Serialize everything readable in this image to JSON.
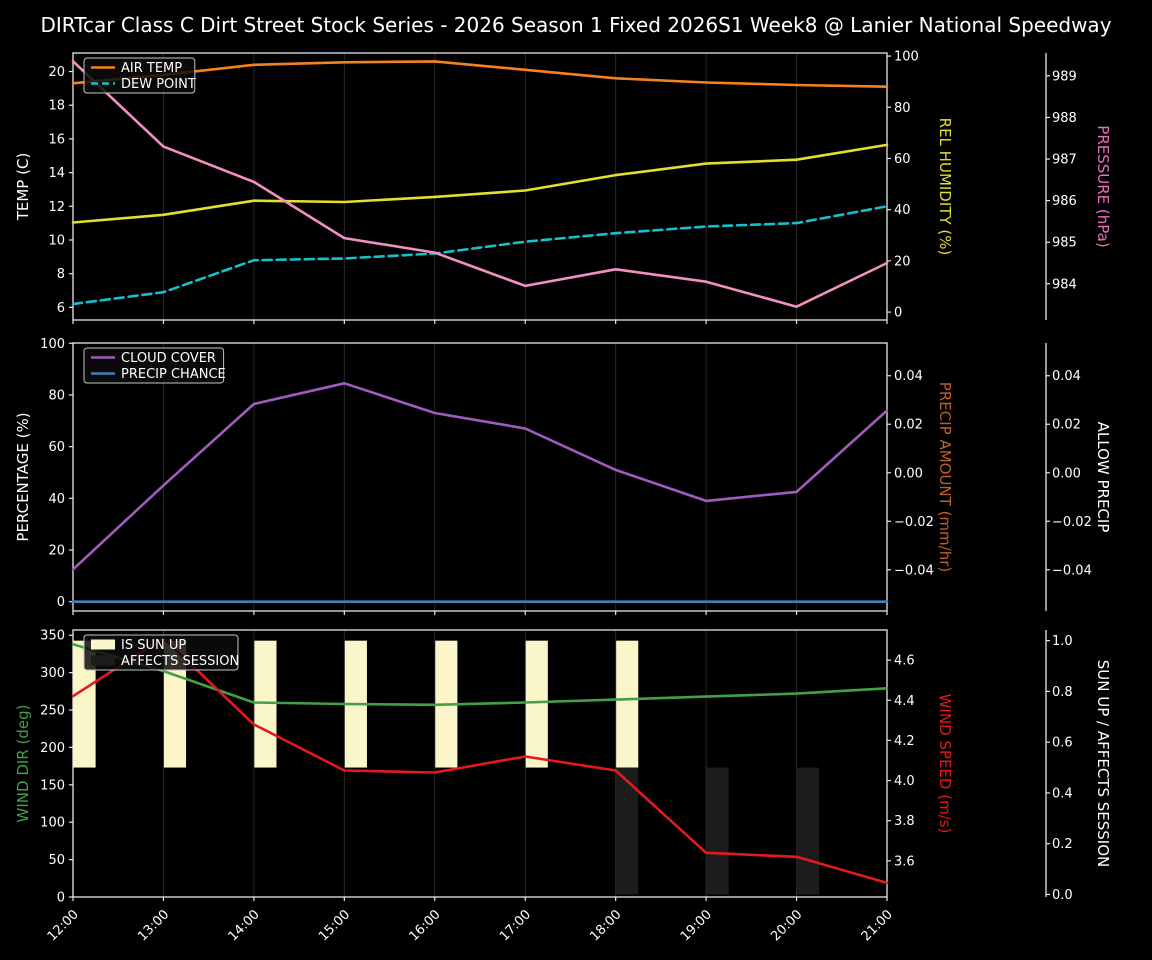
{
  "title": "DIRTcar Class C Dirt Street Stock Series - 2026 Season 1 Fixed 2026S1 Week8 @ Lanier National Speedway",
  "colors": {
    "background": "#000000",
    "spine": "#e8e8e8",
    "grid": "#282828",
    "text": "#ffffff",
    "legend_border": "#c4c4c4",
    "legend_bg": "rgba(12,12,12,0.85)"
  },
  "x_labels": [
    "12:00",
    "13:00",
    "14:00",
    "15:00",
    "16:00",
    "17:00",
    "18:00",
    "19:00",
    "20:00",
    "21:00"
  ],
  "chart_data": [
    {
      "id": "temperature",
      "type": "line",
      "axes": {
        "left": {
          "label": "TEMP (C)",
          "color": "#ffffff",
          "range": [
            5.25,
            21.1
          ],
          "ticks": [
            6,
            8,
            10,
            12,
            14,
            16,
            18,
            20
          ],
          "tick_labels": [
            "6",
            "8",
            "10",
            "12",
            "14",
            "16",
            "18",
            "20"
          ]
        },
        "right1": {
          "label": "REL HUMIDITY (%)",
          "color": "#e3de2f",
          "range": [
            -3.1,
            101.2
          ],
          "ticks": [
            0,
            20,
            40,
            60,
            80,
            100
          ],
          "tick_labels": [
            "0",
            "20",
            "40",
            "60",
            "80",
            "100"
          ]
        },
        "right2": {
          "label": "PRESSURE (hPa)",
          "color": "#ea6fb9",
          "range": [
            983.13,
            989.55
          ],
          "ticks": [
            984,
            985,
            986,
            987,
            988,
            989
          ],
          "tick_labels": [
            "984",
            "985",
            "986",
            "987",
            "988",
            "989"
          ]
        }
      },
      "series": [
        {
          "name": "AIR TEMP",
          "axis": "left",
          "color": "#f5821f",
          "dash": false,
          "values": [
            19.3,
            19.8,
            20.4,
            20.55,
            20.6,
            20.1,
            19.6,
            19.35,
            19.2,
            19.1
          ]
        },
        {
          "name": "DEW POINT",
          "axis": "left",
          "color": "#16c0cb",
          "dash": true,
          "values": [
            6.2,
            6.9,
            8.8,
            8.9,
            9.2,
            9.9,
            10.4,
            10.8,
            11.0,
            12.0
          ]
        },
        {
          "name": "REL HUMIDITY",
          "axis": "right1",
          "color": "#e3de2f",
          "dash": false,
          "values": [
            35,
            38,
            43.5,
            43,
            45,
            47.5,
            53.5,
            58,
            59.5,
            65.3
          ]
        },
        {
          "name": "PRESSURE",
          "axis": "right2",
          "color": "#f48fc1",
          "dash": false,
          "values": [
            989.35,
            987.3,
            986.45,
            985.1,
            984.75,
            983.95,
            984.35,
            984.05,
            983.45,
            984.5
          ]
        }
      ],
      "legend": {
        "entries": [
          {
            "label": "AIR TEMP",
            "type": "line",
            "color": "#f5821f",
            "dash": false
          },
          {
            "label": "DEW POINT",
            "type": "line",
            "color": "#16c0cb",
            "dash": true
          }
        ]
      }
    },
    {
      "id": "clouds-precip",
      "type": "line",
      "axes": {
        "left": {
          "label": "PERCENTAGE (%)",
          "color": "#ffffff",
          "range": [
            -3.6,
            100.1
          ],
          "ticks": [
            0,
            20,
            40,
            60,
            80,
            100
          ],
          "tick_labels": [
            "0",
            "20",
            "40",
            "60",
            "80",
            "100"
          ]
        },
        "right1": {
          "label": "PRECIP AMOUNT (mm/hr)",
          "color": "#c05f25",
          "range": [
            -0.057,
            0.0535
          ],
          "ticks": [
            -0.04,
            -0.02,
            0,
            0.02,
            0.04
          ],
          "tick_labels": [
            "−0.04",
            "−0.02",
            "0.00",
            "0.02",
            "0.04"
          ]
        },
        "right2": {
          "label": "ALLOW PRECIP",
          "color": "#ffffff",
          "range": [
            -0.057,
            0.0535
          ],
          "ticks": [
            -0.04,
            -0.02,
            0,
            0.02,
            0.04
          ],
          "tick_labels": [
            "−0.04",
            "−0.02",
            "0.00",
            "0.02",
            "0.04"
          ]
        }
      },
      "series": [
        {
          "name": "CLOUD COVER",
          "axis": "left",
          "color": "#a05bbf",
          "dash": false,
          "values": [
            12.5,
            45,
            76.5,
            84.5,
            73,
            67,
            51,
            39,
            42.5,
            74
          ]
        },
        {
          "name": "PRECIP CHANCE",
          "axis": "left",
          "color": "#4080bf",
          "dash": false,
          "values": [
            0,
            0,
            0,
            0,
            0,
            0,
            0,
            0,
            0,
            0
          ]
        }
      ],
      "legend": {
        "entries": [
          {
            "label": "CLOUD COVER",
            "type": "line",
            "color": "#a05bbf",
            "dash": false
          },
          {
            "label": "PRECIP CHANCE",
            "type": "line",
            "color": "#4080bf",
            "dash": false
          }
        ]
      }
    },
    {
      "id": "wind",
      "type": "line",
      "axes": {
        "left": {
          "label": "WIND DIR (deg)",
          "color": "#43a047",
          "range": [
            0,
            357
          ],
          "ticks": [
            0,
            50,
            100,
            150,
            200,
            250,
            300,
            350
          ],
          "tick_labels": [
            "0",
            "50",
            "100",
            "150",
            "200",
            "250",
            "300",
            "350"
          ]
        },
        "right1": {
          "label": "WIND SPEED (m/s)",
          "color": "#e31a1c",
          "range": [
            3.42,
            4.75
          ],
          "ticks": [
            3.6,
            3.8,
            4.0,
            4.2,
            4.4,
            4.6
          ],
          "tick_labels": [
            "3.6",
            "3.8",
            "4.0",
            "4.2",
            "4.4",
            "4.6"
          ]
        },
        "right2": {
          "label": "SUN UP / AFFECTS SESSION",
          "color": "#ffffff",
          "range": [
            -0.01,
            1.042
          ],
          "ticks": [
            0.0,
            0.2,
            0.4,
            0.6,
            0.8,
            1.0
          ],
          "tick_labels": [
            "0.0",
            "0.2",
            "0.4",
            "0.6",
            "0.8",
            "1.0"
          ]
        }
      },
      "bars": [
        {
          "name": "IS SUN UP",
          "color": "#faf6c9",
          "axis": "right2",
          "span": [
            0.5,
            1.0
          ],
          "bar_width_hours": 0.25,
          "hours": [
            "12:00",
            "13:00",
            "14:00",
            "15:00",
            "16:00",
            "17:00",
            "18:00"
          ]
        },
        {
          "name": "AFFECTS SESSION",
          "color": "#1c1c1c",
          "axis": "right2",
          "span": [
            0.0,
            0.5
          ],
          "bar_width_hours": 0.25,
          "hours": [
            "18:00",
            "19:00",
            "20:00"
          ]
        }
      ],
      "series": [
        {
          "name": "WIND DIR",
          "axis": "left",
          "color": "#43a047",
          "dash": false,
          "values": [
            338,
            302,
            260,
            258,
            257,
            260,
            264,
            268,
            272,
            279
          ]
        },
        {
          "name": "WIND SPEED",
          "axis": "right1",
          "color": "#e31a1c",
          "dash": false,
          "values": [
            4.42,
            4.71,
            4.28,
            4.05,
            4.04,
            4.12,
            4.05,
            3.64,
            3.62,
            3.49
          ]
        }
      ],
      "legend": {
        "entries": [
          {
            "label": "IS SUN UP",
            "type": "patch",
            "color": "#faf6c9",
            "dash": false
          },
          {
            "label": "AFFECTS SESSION",
            "type": "patch",
            "color": "#1c1c1c",
            "dash": false
          }
        ]
      }
    }
  ]
}
